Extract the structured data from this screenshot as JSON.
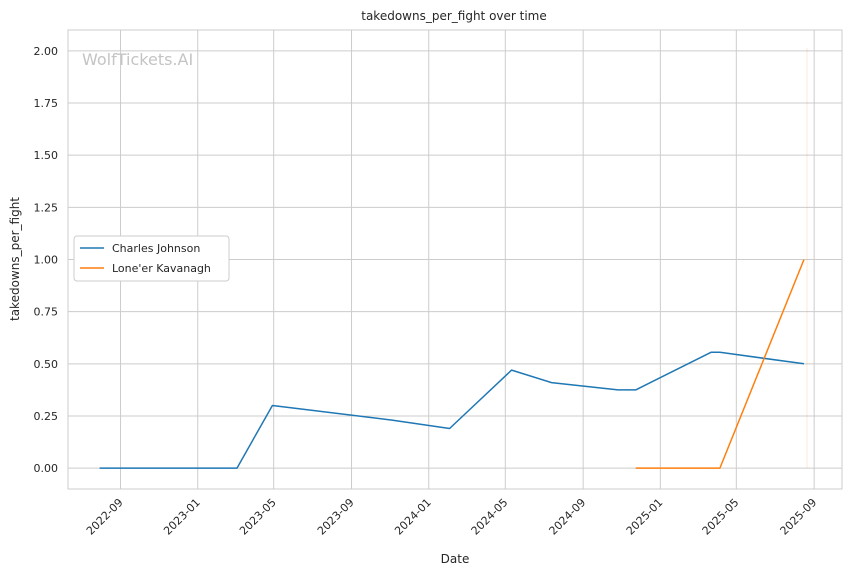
{
  "chart_data": {
    "type": "line",
    "title": "takedowns_per_fight over time",
    "xlabel": "Date",
    "ylabel": "takedowns_per_fight",
    "watermark": "WolfTickets.AI",
    "grid": true,
    "legend_position": "center-left",
    "x_scale": "date",
    "xlim": [
      "2022-06-10",
      "2025-10-15"
    ],
    "ylim": [
      -0.1,
      2.1
    ],
    "x_ticks": [
      "2022-09",
      "2023-01",
      "2023-05",
      "2023-09",
      "2024-01",
      "2024-05",
      "2024-09",
      "2025-01",
      "2025-05",
      "2025-09"
    ],
    "y_ticks": [
      "0.00",
      "0.25",
      "0.50",
      "0.75",
      "1.00",
      "1.25",
      "1.50",
      "1.75",
      "2.00"
    ],
    "series": [
      {
        "name": "Charles Johnson",
        "color": "#1f77b4",
        "x": [
          "2022-07-30",
          "2023-03-04",
          "2023-04-29",
          "2023-11-04",
          "2024-02-03",
          "2024-05-11",
          "2024-07-13",
          "2024-10-26",
          "2024-11-23",
          "2025-03-22",
          "2025-04-05",
          "2025-08-16"
        ],
        "y": [
          0.0,
          0.0,
          0.3,
          0.23,
          0.19,
          0.47,
          0.41,
          0.375,
          0.375,
          0.555,
          0.555,
          0.5
        ]
      },
      {
        "name": "Lone'er Kavanagh",
        "color": "#ff7f0e",
        "x": [
          "2024-11-23",
          "2025-04-05",
          "2025-08-16"
        ],
        "y": [
          0.0,
          0.0,
          1.0
        ]
      }
    ]
  }
}
